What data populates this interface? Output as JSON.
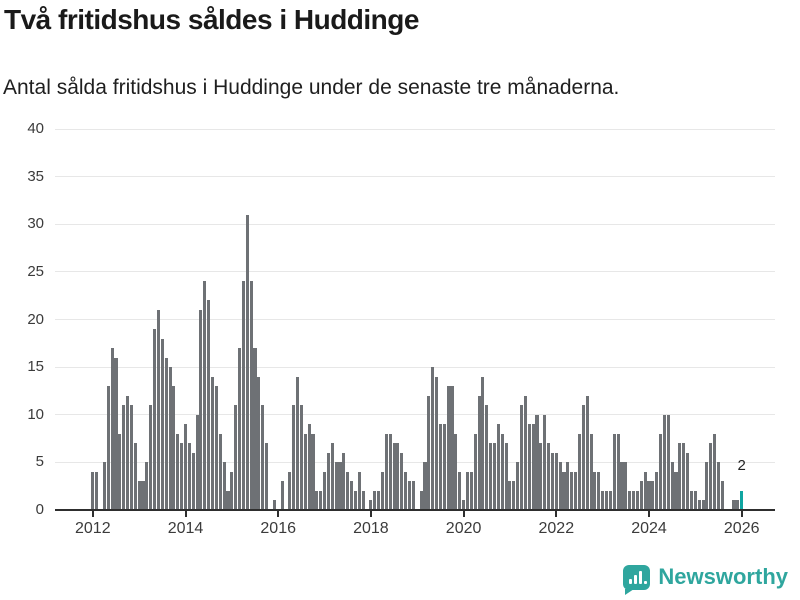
{
  "header": {
    "title": "Två fritidshus såldes i Huddinge",
    "subtitle": "Antal sålda fritidshus i Huddinge under de senaste tre månaderna."
  },
  "chart_data": {
    "type": "bar",
    "title": "Två fritidshus såldes i Huddinge",
    "subtitle": "Antal sålda fritidshus i Huddinge under de senaste tre månaderna.",
    "unit": "fritidshus per månad",
    "start_month": "2012-01",
    "end_month": "2026-01",
    "ylim": [
      0,
      40
    ],
    "y_ticks": [
      0,
      5,
      10,
      15,
      20,
      25,
      30,
      35,
      40
    ],
    "x_tick_labels": [
      "2012",
      "2014",
      "2016",
      "2018",
      "2020",
      "2022",
      "2024",
      "2026"
    ],
    "grid": true,
    "bar_color": "#6e7175",
    "highlight_color": "#0fa5a1",
    "highlight_last": true,
    "highlight_label": "2",
    "years": [
      {
        "year": 2012,
        "values": [
          4,
          4,
          0,
          5,
          13,
          17,
          16,
          8,
          11,
          12,
          11,
          7
        ]
      },
      {
        "year": 2013,
        "values": [
          3,
          3,
          5,
          11,
          19,
          21,
          18,
          16,
          15,
          13,
          8,
          7
        ]
      },
      {
        "year": 2014,
        "values": [
          9,
          7,
          6,
          10,
          21,
          24,
          22,
          14,
          13,
          8,
          5,
          2
        ]
      },
      {
        "year": 2015,
        "values": [
          4,
          11,
          17,
          24,
          31,
          24,
          17,
          14,
          11,
          7,
          0,
          1
        ]
      },
      {
        "year": 2016,
        "values": [
          0,
          3,
          0,
          4,
          11,
          14,
          11,
          8,
          9,
          8,
          2,
          2
        ]
      },
      {
        "year": 2017,
        "values": [
          4,
          6,
          7,
          5,
          5,
          6,
          4,
          3,
          2,
          4,
          2,
          0
        ]
      },
      {
        "year": 2018,
        "values": [
          1,
          2,
          2,
          4,
          8,
          8,
          7,
          7,
          6,
          4,
          3,
          3
        ]
      },
      {
        "year": 2019,
        "values": [
          0,
          2,
          5,
          12,
          15,
          14,
          9,
          9,
          13,
          13,
          8,
          4
        ]
      },
      {
        "year": 2020,
        "values": [
          1,
          4,
          4,
          8,
          12,
          14,
          11,
          7,
          7,
          9,
          8,
          7
        ]
      },
      {
        "year": 2021,
        "values": [
          3,
          3,
          5,
          11,
          12,
          9,
          9,
          10,
          7,
          10,
          7,
          6
        ]
      },
      {
        "year": 2022,
        "values": [
          6,
          5,
          4,
          5,
          4,
          4,
          8,
          11,
          12,
          8,
          4,
          4
        ]
      },
      {
        "year": 2023,
        "values": [
          2,
          2,
          2,
          8,
          8,
          5,
          5,
          2,
          2,
          2,
          3,
          4
        ]
      },
      {
        "year": 2024,
        "values": [
          3,
          3,
          4,
          8,
          10,
          10,
          5,
          4,
          7,
          7,
          6,
          2
        ]
      },
      {
        "year": 2025,
        "values": [
          2,
          1,
          1,
          5,
          7,
          8,
          5,
          3,
          0,
          0,
          1,
          1
        ]
      },
      {
        "year": 2026,
        "values": [
          2
        ]
      }
    ]
  },
  "footer": {
    "brand": "Newsworthy",
    "logo_icon": "newsworthy-pin-barchart-icon"
  },
  "colors": {
    "background": "#ffffff",
    "bar": "#6e7175",
    "highlight": "#0fa5a1",
    "brand": "#2fa69e",
    "gridline": "#e7e7e7",
    "axis": "#2e2e2e",
    "text": "#1a1a1a",
    "axis_text": "#3b3b3b"
  }
}
